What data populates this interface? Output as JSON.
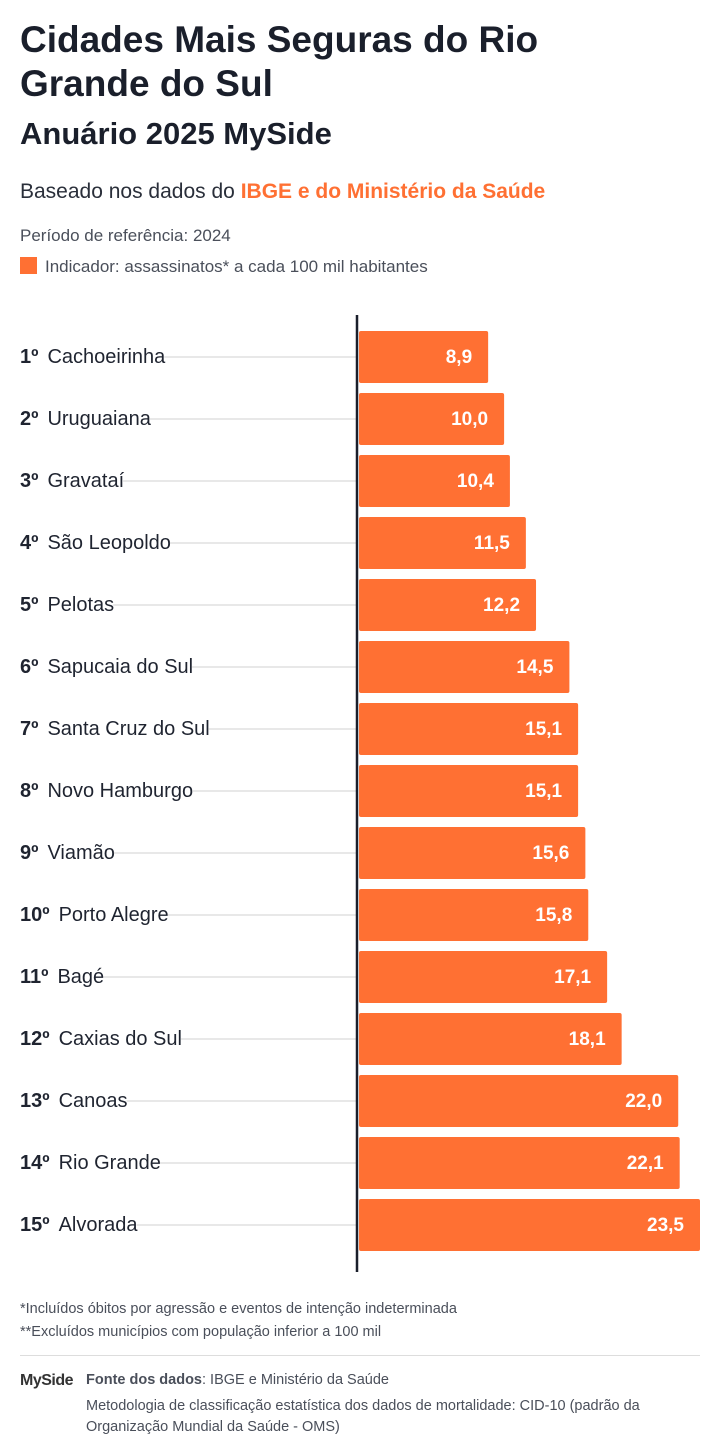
{
  "chart_data": {
    "type": "bar",
    "title": "Cidades Mais Seguras do Rio Grande do Sul",
    "subtitle": "Anuário 2025 MySide",
    "source_intro": "Baseado nos dados do ",
    "source_highlight": "IBGE e do Ministério da Saúde",
    "period": "Período de referência: 2024",
    "legend": "Indicador: assassinatos* a cada 100 mil habitantes",
    "color": "#ff7033",
    "ranks": [
      "1º",
      "2º",
      "3º",
      "4º",
      "5º",
      "6º",
      "7º",
      "8º",
      "9º",
      "10º",
      "11º",
      "12º",
      "13º",
      "14º",
      "15º"
    ],
    "categories": [
      "Cachoeirinha",
      "Uruguaiana",
      "Gravataí",
      "São Leopoldo",
      "Pelotas",
      "Sapucaia do Sul",
      "Santa Cruz do Sul",
      "Novo Hamburgo",
      "Viamão",
      "Porto Alegre",
      "Bagé",
      "Caxias do Sul",
      "Canoas",
      "Rio Grande",
      "Alvorada"
    ],
    "values": [
      8.9,
      10.0,
      10.4,
      11.5,
      12.2,
      14.5,
      15.1,
      15.1,
      15.6,
      15.8,
      17.1,
      18.1,
      22.0,
      22.1,
      23.5
    ],
    "value_labels": [
      "8,9",
      "10,0",
      "10,4",
      "11,5",
      "12,2",
      "14,5",
      "15,1",
      "15,1",
      "15,6",
      "15,8",
      "17,1",
      "18,1",
      "22,0",
      "22,1",
      "23,5"
    ],
    "xlim": [
      0,
      23.5
    ],
    "footnotes": [
      "*Incluídos óbitos por agressão e eventos de intenção indeterminada",
      "**Excluídos municípios com população inferior a 100 mil"
    ],
    "logo": "MySide",
    "source_label": "Fonte dos dados",
    "source_text": ": IBGE e Ministério da Saúde",
    "methodology": "Metodologia de classificação estatística dos dados de mortalidade: CID-10 (padrão da Organização Mundial da Saúde - OMS)"
  }
}
